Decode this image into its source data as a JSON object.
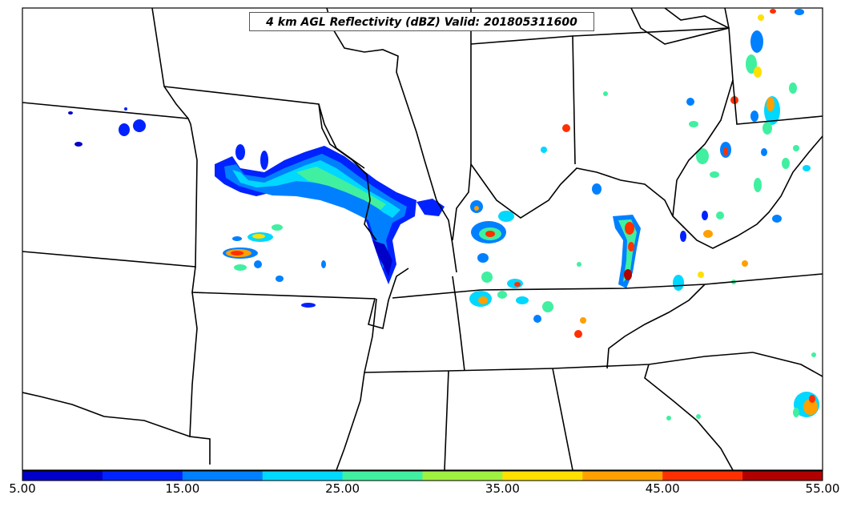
{
  "title": "4 km AGL Reflectivity (dBZ) Valid: 201805311600",
  "colorbar": {
    "colors": [
      "#0000c8",
      "#0022ff",
      "#0080ff",
      "#00d8ff",
      "#40f0a0",
      "#a0f040",
      "#ffe000",
      "#ffa000",
      "#ff3000",
      "#b00000"
    ],
    "tick_labels": [
      "5.00",
      "15.00",
      "25.00",
      "35.00",
      "45.00",
      "55.00"
    ],
    "range": [
      5,
      55
    ]
  },
  "map_colors": {
    "border": "#000000",
    "background": "#ffffff"
  }
}
